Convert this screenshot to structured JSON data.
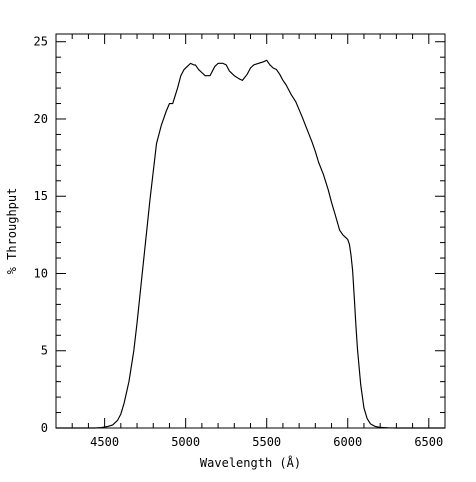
{
  "chart_data": {
    "type": "line",
    "xlabel": "Wavelength (Å)",
    "ylabel": "% Throughput",
    "xlim": [
      4200,
      6600
    ],
    "ylim": [
      0,
      25.5
    ],
    "x_ticks": [
      4500,
      5000,
      5500,
      6000,
      6500
    ],
    "y_ticks": [
      0,
      5,
      10,
      15,
      20,
      25
    ],
    "grid": false,
    "series": [
      {
        "color": "#000000",
        "x": [
          4200,
          4440,
          4480,
          4520,
          4550,
          4580,
          4600,
          4620,
          4650,
          4680,
          4700,
          4720,
          4750,
          4780,
          4800,
          4820,
          4850,
          4880,
          4900,
          4920,
          4950,
          4970,
          4990,
          5010,
          5030,
          5050,
          5060,
          5080,
          5100,
          5120,
          5150,
          5180,
          5200,
          5230,
          5250,
          5270,
          5300,
          5330,
          5350,
          5380,
          5400,
          5420,
          5450,
          5480,
          5500,
          5520,
          5540,
          5560,
          5580,
          5600,
          5620,
          5650,
          5680,
          5700,
          5720,
          5750,
          5780,
          5800,
          5820,
          5850,
          5880,
          5900,
          5920,
          5950,
          5970,
          5980,
          5990,
          6000,
          6010,
          6020,
          6030,
          6040,
          6050,
          6060,
          6080,
          6100,
          6120,
          6140,
          6170,
          6200,
          6250,
          6300,
          6350,
          6400,
          6600
        ],
        "y": [
          0,
          0,
          0.03,
          0.1,
          0.2,
          0.5,
          0.9,
          1.6,
          3.0,
          5.0,
          6.8,
          8.8,
          11.8,
          14.8,
          16.6,
          18.4,
          19.6,
          20.5,
          21.0,
          21.0,
          22.0,
          22.8,
          23.2,
          23.4,
          23.6,
          23.5,
          23.5,
          23.2,
          23.0,
          22.8,
          22.8,
          23.4,
          23.6,
          23.6,
          23.5,
          23.1,
          22.8,
          22.6,
          22.5,
          22.9,
          23.3,
          23.5,
          23.6,
          23.7,
          23.8,
          23.5,
          23.3,
          23.2,
          22.9,
          22.5,
          22.2,
          21.6,
          21.1,
          20.6,
          20.1,
          19.3,
          18.5,
          17.9,
          17.2,
          16.4,
          15.4,
          14.6,
          13.9,
          12.8,
          12.5,
          12.4,
          12.3,
          12.2,
          11.9,
          11.2,
          10.2,
          8.5,
          6.7,
          5.1,
          2.8,
          1.3,
          0.6,
          0.27,
          0.1,
          0.04,
          0.01,
          0,
          0,
          0,
          0
        ]
      }
    ]
  }
}
